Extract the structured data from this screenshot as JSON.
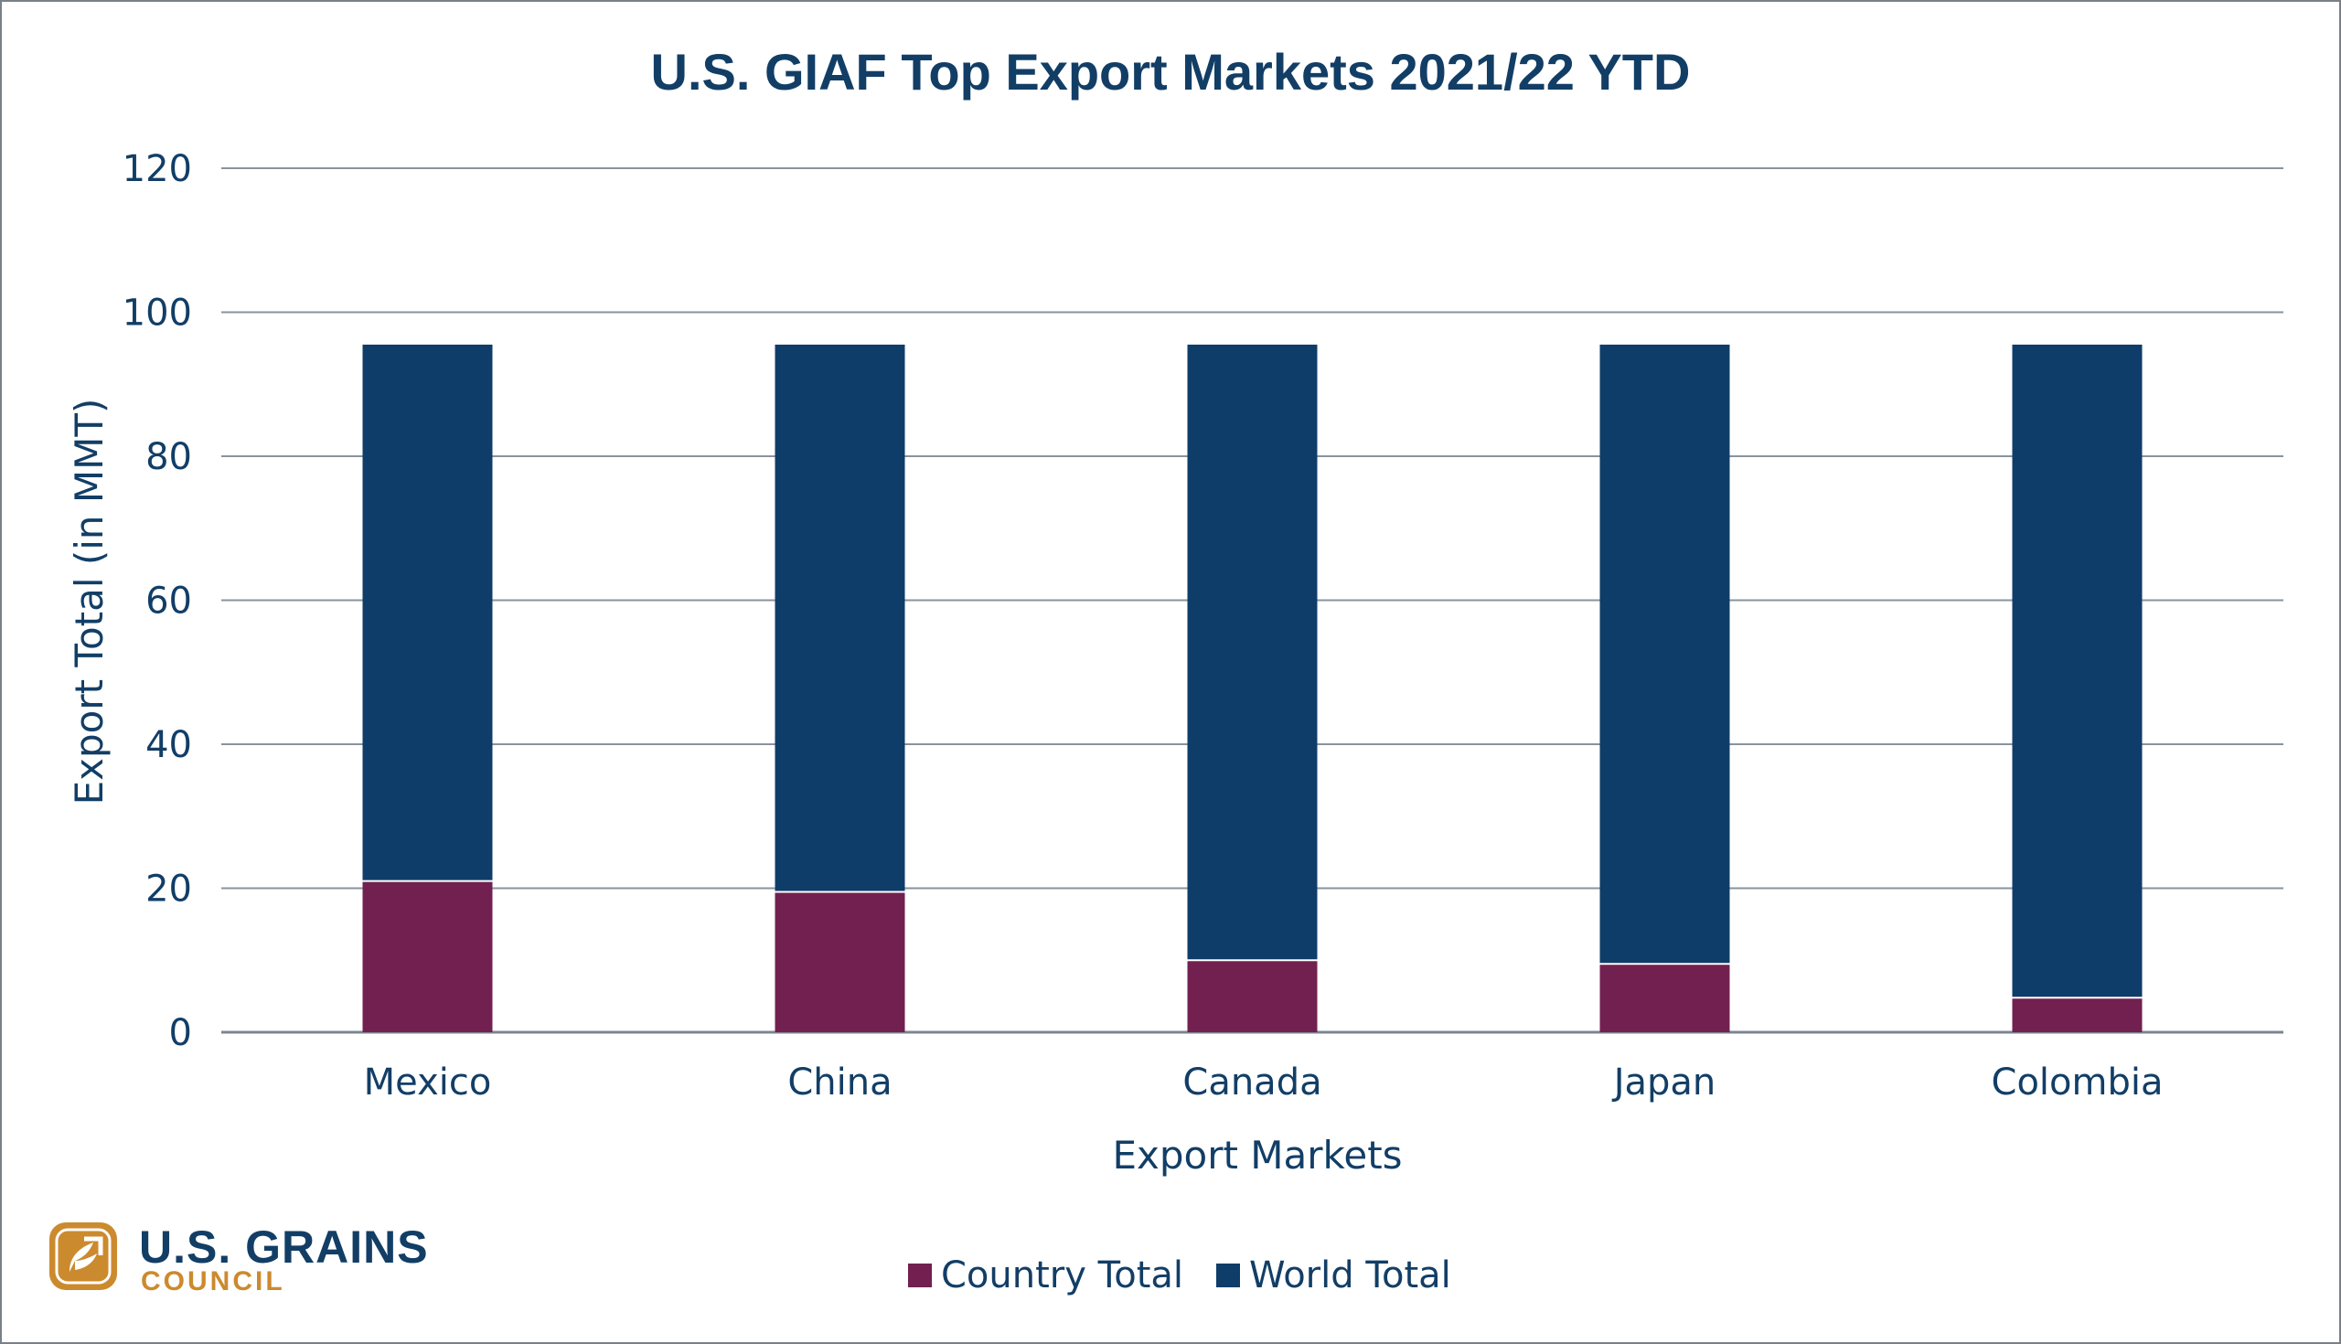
{
  "chart_data": {
    "type": "bar",
    "stacked": true,
    "title": "U.S. GIAF Top Export Markets 2021/22 YTD",
    "xlabel": "Export Markets",
    "ylabel": "Export Total (in MMT)",
    "categories": [
      "Mexico",
      "China",
      "Canada",
      "Japan",
      "Colombia"
    ],
    "series": [
      {
        "name": "Country Total",
        "color": "#722050",
        "values": [
          21,
          19.5,
          10,
          9.5,
          4.8
        ]
      },
      {
        "name": "World Total",
        "color": "#0f3d69",
        "values": [
          95.5,
          95.5,
          95.5,
          95.5,
          95.5
        ]
      }
    ],
    "ylim": [
      0,
      120
    ],
    "yticks": [
      0,
      20,
      40,
      60,
      80,
      100,
      120
    ],
    "grid": true,
    "legend_position": "bottom"
  },
  "logo": {
    "line1": "U.S. GRAINS",
    "line2": "COUNCIL",
    "colors": {
      "navy": "#123e66",
      "gold": "#cc8a2e"
    }
  }
}
